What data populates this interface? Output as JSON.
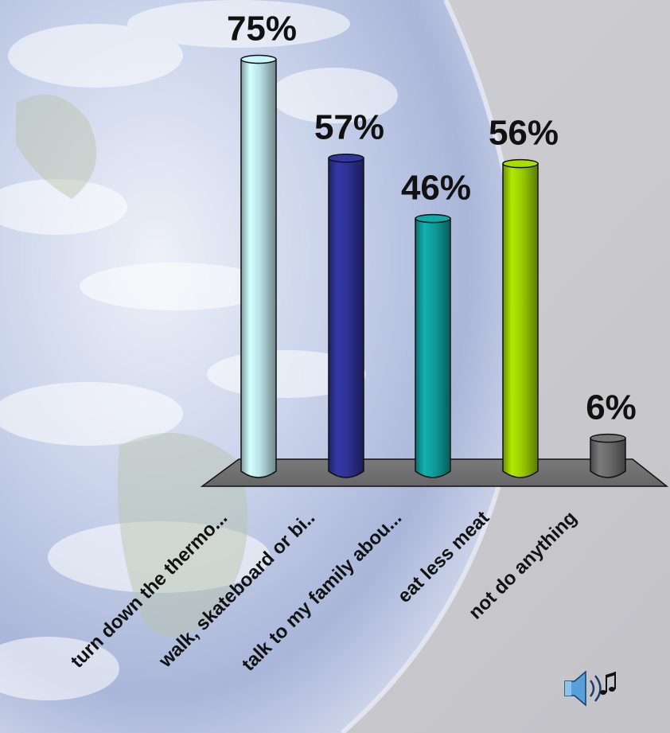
{
  "chart_data": {
    "type": "bar",
    "categories": [
      "turn down the thermo...",
      "walk, skateboard or bi..",
      "talk to my family abou...",
      "eat less meat",
      "not do anything"
    ],
    "values": [
      75,
      57,
      46,
      56,
      6
    ],
    "value_labels": [
      "75%",
      "57%",
      "46%",
      "56%",
      "6%"
    ],
    "ylim": [
      0,
      100
    ],
    "grid": false,
    "legend": "none",
    "style": "3d-cylinder",
    "colors": [
      "#b8dfe3",
      "#2e3192",
      "#0f9a98",
      "#9acb00",
      "#6a6a6a"
    ],
    "floor_color": "#6f6f6f"
  },
  "media": {
    "icon": "speaker-sound-icon"
  }
}
